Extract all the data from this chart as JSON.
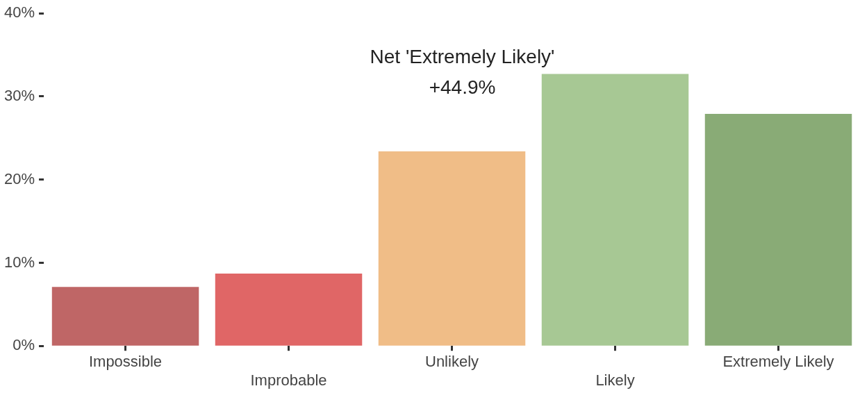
{
  "chart_data": {
    "type": "bar",
    "categories": [
      "Impossible",
      "Improbable",
      "Unlikely",
      "Likely",
      "Extremely Likely"
    ],
    "values": [
      7.1,
      8.7,
      23.4,
      32.7,
      27.9
    ],
    "colors": [
      "#bf6666",
      "#e06666",
      "#f0bd87",
      "#a7c894",
      "#89ab76"
    ],
    "ylim": [
      0,
      40
    ],
    "yticks": [
      {
        "value": 0,
        "label": "0%"
      },
      {
        "value": 10,
        "label": "10%"
      },
      {
        "value": 20,
        "label": "20%"
      },
      {
        "value": 30,
        "label": "30%"
      },
      {
        "value": 40,
        "label": "40%"
      }
    ],
    "grid": false,
    "legend": false,
    "annotations": [
      "Net 'Extremely Likely'\n+44.9%"
    ]
  }
}
